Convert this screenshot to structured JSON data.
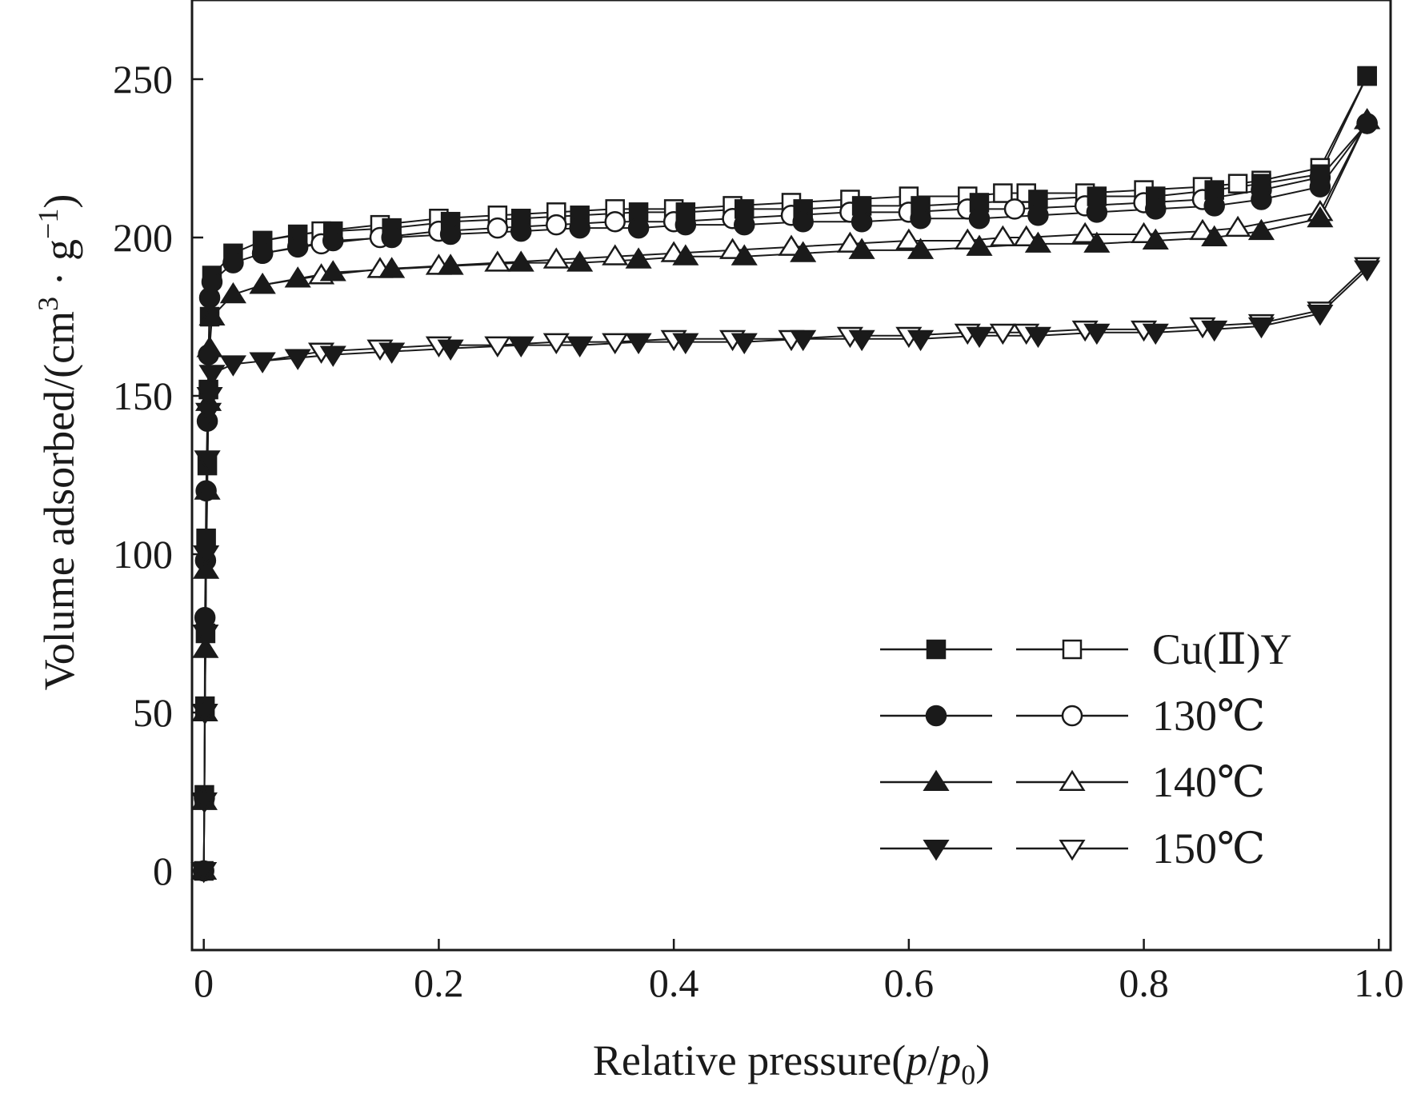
{
  "chart_data": {
    "type": "line",
    "title": "",
    "xlabel_parts": [
      "Relative pressure(",
      "p",
      "/",
      "p",
      "0",
      ")"
    ],
    "ylabel_parts": [
      "Volume adsorbed/(cm",
      "3",
      " · g",
      "−1",
      ")"
    ],
    "xlim": [
      -0.01,
      1.01
    ],
    "ylim": [
      -25,
      275
    ],
    "x_ticks": [
      0,
      0.2,
      0.4,
      0.6,
      0.8,
      1.0
    ],
    "x_tick_labels": [
      "0",
      "0.2",
      "0.4",
      "0.6",
      "0.8",
      "1.0"
    ],
    "y_ticks": [
      0,
      50,
      100,
      150,
      200,
      250
    ],
    "y_tick_labels": [
      "0",
      "50",
      "100",
      "150",
      "200",
      "250"
    ],
    "legend_position": "bottom-right",
    "series": [
      {
        "name": "Cu(Ⅱ)Y",
        "marker": "square",
        "adsorption": {
          "x": [
            0.0,
            0.0005,
            0.001,
            0.0015,
            0.002,
            0.003,
            0.004,
            0.005,
            0.007,
            0.025,
            0.05,
            0.08,
            0.11,
            0.16,
            0.21,
            0.27,
            0.32,
            0.37,
            0.41,
            0.46,
            0.51,
            0.56,
            0.61,
            0.66,
            0.71,
            0.76,
            0.81,
            0.86,
            0.9,
            0.95,
            0.99
          ],
          "y": [
            0,
            24,
            52,
            75,
            105,
            128,
            152,
            175,
            188,
            195,
            199,
            201,
            202,
            203,
            205,
            206,
            207,
            208,
            208,
            209,
            209,
            210,
            210,
            211,
            212,
            213,
            213,
            215,
            217,
            220,
            251
          ]
        },
        "desorption": {
          "x": [
            0.99,
            0.95,
            0.9,
            0.88,
            0.85,
            0.8,
            0.75,
            0.7,
            0.68,
            0.65,
            0.6,
            0.55,
            0.5,
            0.45,
            0.4,
            0.35,
            0.3,
            0.25,
            0.2,
            0.15,
            0.1,
            0.05
          ],
          "y": [
            251,
            222,
            218,
            217,
            216,
            215,
            214,
            214,
            214,
            213,
            213,
            212,
            211,
            210,
            209,
            209,
            208,
            207,
            206,
            204,
            202,
            199
          ]
        }
      },
      {
        "name": "130℃",
        "marker": "circle",
        "adsorption": {
          "x": [
            0.0,
            0.0005,
            0.001,
            0.0015,
            0.002,
            0.003,
            0.004,
            0.005,
            0.007,
            0.025,
            0.05,
            0.08,
            0.11,
            0.16,
            0.21,
            0.27,
            0.32,
            0.37,
            0.41,
            0.46,
            0.51,
            0.56,
            0.61,
            0.66,
            0.71,
            0.76,
            0.81,
            0.86,
            0.9,
            0.95,
            0.99
          ],
          "y": [
            0,
            23,
            80,
            98,
            120,
            142,
            163,
            181,
            186,
            192,
            195,
            197,
            199,
            200,
            201,
            202,
            203,
            203,
            204,
            204,
            205,
            205,
            206,
            206,
            207,
            208,
            209,
            210,
            212,
            216,
            236
          ]
        },
        "desorption": {
          "x": [
            0.99,
            0.95,
            0.9,
            0.85,
            0.8,
            0.75,
            0.69,
            0.65,
            0.6,
            0.55,
            0.5,
            0.45,
            0.4,
            0.35,
            0.3,
            0.25,
            0.2,
            0.15,
            0.1,
            0.05
          ],
          "y": [
            236,
            219,
            215,
            212,
            211,
            210,
            209,
            209,
            208,
            208,
            207,
            206,
            205,
            205,
            204,
            203,
            202,
            200,
            198,
            195
          ]
        }
      },
      {
        "name": "140℃",
        "marker": "triangle-up",
        "adsorption": {
          "x": [
            0.0,
            0.0005,
            0.001,
            0.0015,
            0.002,
            0.003,
            0.004,
            0.005,
            0.007,
            0.025,
            0.05,
            0.08,
            0.11,
            0.16,
            0.21,
            0.27,
            0.32,
            0.37,
            0.41,
            0.46,
            0.51,
            0.56,
            0.61,
            0.66,
            0.71,
            0.76,
            0.81,
            0.86,
            0.9,
            0.95,
            0.99
          ],
          "y": [
            0,
            22,
            50,
            70,
            95,
            120,
            148,
            165,
            175,
            182,
            185,
            187,
            189,
            190,
            191,
            192,
            192,
            193,
            194,
            194,
            195,
            196,
            196,
            197,
            198,
            198,
            199,
            200,
            202,
            206,
            237
          ]
        },
        "desorption": {
          "x": [
            0.99,
            0.95,
            0.88,
            0.85,
            0.8,
            0.75,
            0.7,
            0.68,
            0.65,
            0.6,
            0.55,
            0.5,
            0.45,
            0.4,
            0.35,
            0.3,
            0.25,
            0.2,
            0.15,
            0.1,
            0.05
          ],
          "y": [
            237,
            208,
            203,
            202,
            201,
            201,
            200,
            200,
            199,
            199,
            198,
            197,
            196,
            195,
            194,
            193,
            192,
            191,
            190,
            188,
            185
          ]
        }
      },
      {
        "name": "150℃",
        "marker": "triangle-down",
        "adsorption": {
          "x": [
            0.0,
            0.0005,
            0.001,
            0.0015,
            0.002,
            0.003,
            0.004,
            0.005,
            0.007,
            0.025,
            0.05,
            0.08,
            0.11,
            0.16,
            0.21,
            0.27,
            0.32,
            0.37,
            0.41,
            0.46,
            0.51,
            0.56,
            0.61,
            0.66,
            0.71,
            0.76,
            0.81,
            0.86,
            0.9,
            0.95,
            0.99
          ],
          "y": [
            0,
            22,
            50,
            75,
            100,
            130,
            145,
            150,
            157,
            160,
            161,
            162,
            163,
            164,
            165,
            166,
            166,
            167,
            167,
            167,
            168,
            168,
            168,
            169,
            169,
            170,
            170,
            171,
            172,
            176,
            190
          ]
        },
        "desorption": {
          "x": [
            0.99,
            0.95,
            0.9,
            0.85,
            0.8,
            0.75,
            0.7,
            0.68,
            0.65,
            0.6,
            0.55,
            0.5,
            0.45,
            0.4,
            0.35,
            0.3,
            0.25,
            0.2,
            0.15,
            0.1,
            0.05
          ],
          "y": [
            191,
            177,
            173,
            172,
            171,
            171,
            170,
            170,
            170,
            169,
            169,
            168,
            168,
            168,
            167,
            167,
            166,
            166,
            165,
            164,
            161
          ]
        }
      }
    ]
  }
}
